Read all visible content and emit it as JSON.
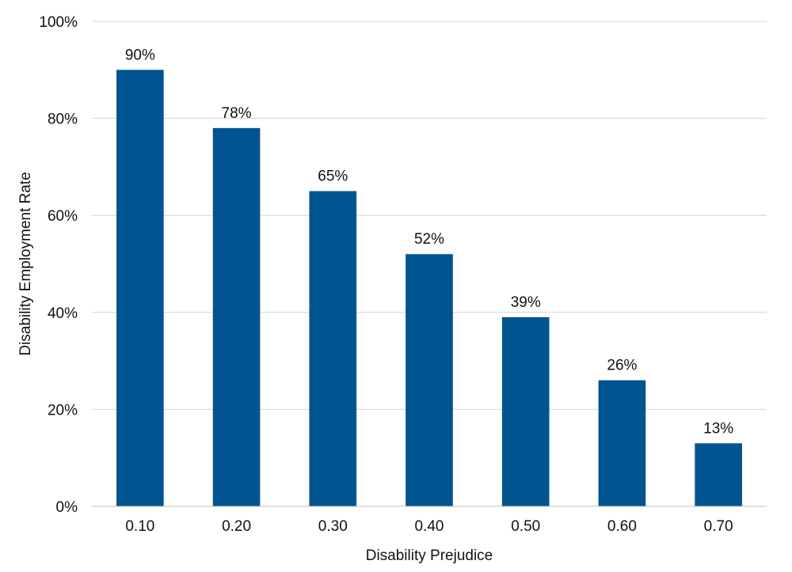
{
  "chart_data": {
    "type": "bar",
    "title": "",
    "xlabel": "Disability Prejudice",
    "ylabel": "Disability Employment Rate",
    "categories": [
      "0.10",
      "0.20",
      "0.30",
      "0.40",
      "0.50",
      "0.60",
      "0.70"
    ],
    "values": [
      90,
      78,
      65,
      52,
      39,
      26,
      13
    ],
    "data_labels": [
      "90%",
      "78%",
      "65%",
      "52%",
      "39%",
      "26%",
      "13%"
    ],
    "ylim": [
      0,
      100
    ],
    "yticks": [
      0,
      20,
      40,
      60,
      80,
      100
    ],
    "ytick_labels": [
      "0%",
      "20%",
      "40%",
      "60%",
      "80%",
      "100%"
    ],
    "grid": true,
    "legend": "none",
    "bar_color": "#00548f"
  }
}
